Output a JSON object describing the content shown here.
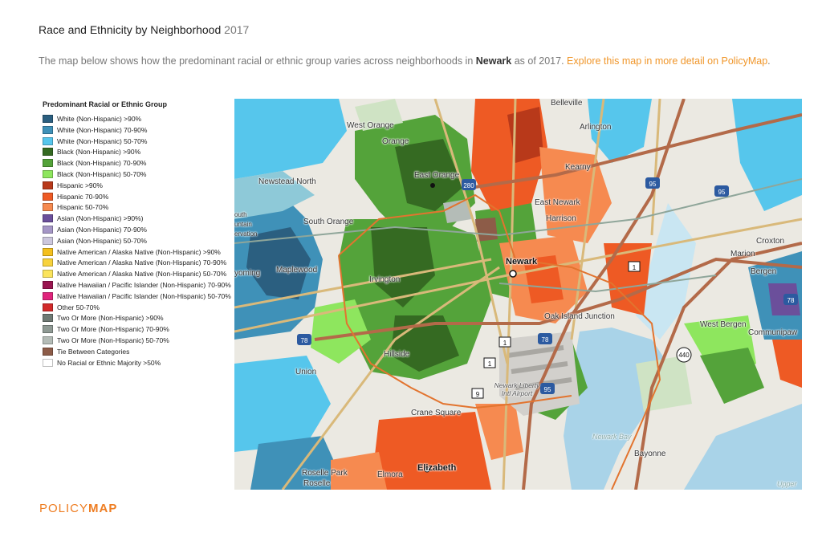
{
  "header": {
    "title": "Race and Ethnicity by Neighborhood",
    "year": "2017",
    "description_pre": "The map below shows how the predominant racial or ethnic group varies across neighborhoods in ",
    "place": "Newark",
    "description_post": " as of 2017. ",
    "link_text": "Explore this map in more detail on PolicyMap",
    "period": "."
  },
  "legend": {
    "title": "Predominant Racial or Ethnic Group",
    "items": [
      {
        "label": "White (Non-Hispanic) >90%",
        "color": "#2b5f80"
      },
      {
        "label": "White (Non-Hispanic) 70-90%",
        "color": "#3f91b8"
      },
      {
        "label": "White (Non-Hispanic) 50-70%",
        "color": "#56c6ec"
      },
      {
        "label": "Black (Non-Hispanic) >90%",
        "color": "#356a22"
      },
      {
        "label": "Black (Non-Hispanic) 70-90%",
        "color": "#54a33a"
      },
      {
        "label": "Black (Non-Hispanic) 50-70%",
        "color": "#8ee65e"
      },
      {
        "label": "Hispanic >90%",
        "color": "#b8391a"
      },
      {
        "label": "Hispanic 70-90%",
        "color": "#ee5a24"
      },
      {
        "label": "Hispanic 50-70%",
        "color": "#f68a50"
      },
      {
        "label": "Asian (Non-Hispanic) >90%)",
        "color": "#6b4f9b"
      },
      {
        "label": "Asian (Non-Hispanic) 70-90%",
        "color": "#a596c6"
      },
      {
        "label": "Asian (Non-Hispanic) 50-70%",
        "color": "#ccc7dd"
      },
      {
        "label": "Native American / Alaska Native (Non-Hispanic) >90%",
        "color": "#f4c01e"
      },
      {
        "label": "Native American / Alaska Native (Non-Hispanic) 70-90%",
        "color": "#f7d23c"
      },
      {
        "label": "Native American / Alaska Native (Non-Hispanic) 50-70%",
        "color": "#fbe45c"
      },
      {
        "label": "Native Hawaiian / Pacific Islander (Non-Hispanic) 70-90%",
        "color": "#9a1550"
      },
      {
        "label": "Native Hawaiian / Pacific Islander (Non-Hispanic) 50-70%",
        "color": "#e0247c"
      },
      {
        "label": "Other 50-70%",
        "color": "#d22a2a"
      },
      {
        "label": "Two Or More (Non-Hispanic) >90%",
        "color": "#6f7a74"
      },
      {
        "label": "Two Or More (Non-Hispanic) 70-90%",
        "color": "#8f9a94"
      },
      {
        "label": "Two Or More (Non-Hispanic) 50-70%",
        "color": "#b4bcb7"
      },
      {
        "label": "Tie Between Categories",
        "color": "#8d5c48"
      },
      {
        "label": "No Racial or Ethnic Majority >50%",
        "color": "#ffffff"
      }
    ]
  },
  "map": {
    "place_labels": {
      "belleville": "Belleville",
      "west_orange": "West Orange",
      "orange": "Orange",
      "arlington": "Arlington",
      "kearny": "Kearny",
      "east_orange": "East Orange",
      "newstead_north": "Newstead North",
      "east_newark": "East Newark",
      "harrison": "Harrison",
      "south": "outh",
      "south_orange": "South Orange",
      "mountain": "untain",
      "reservation": "ervation",
      "croxton": "Croxton",
      "marion": "Marion",
      "bergen": "Bergen",
      "newark": "Newark",
      "wyoming": "yoming",
      "maplewood": "Maplewood",
      "irvington": "Irvington",
      "oak_island": "Oak Island Junction",
      "west_bergen": "West Bergen",
      "communipaw": "Communipaw",
      "hillside": "Hillside",
      "union": "Union",
      "newark_airport": "Newark Liberty Intl Airport",
      "crane_square": "Crane Square",
      "newark_bay": "Newark Bay",
      "bayonne": "Bayonne",
      "roselle_park": "Roselle Park",
      "elmora": "Elmora",
      "elizabeth": "Elizabeth",
      "roselle": "Roselle",
      "upper": "Upper"
    },
    "shields": {
      "i280": "280",
      "i95_a": "95",
      "i95_b": "95",
      "us1_a": "1",
      "us1_b": "1",
      "us1_c": "1",
      "i78_a": "78",
      "i78_b": "78",
      "i78_c": "78",
      "us9": "9",
      "i95_c": "95",
      "rt440": "440"
    }
  },
  "brand": {
    "policy": "POLICY",
    "map": "MAP"
  }
}
